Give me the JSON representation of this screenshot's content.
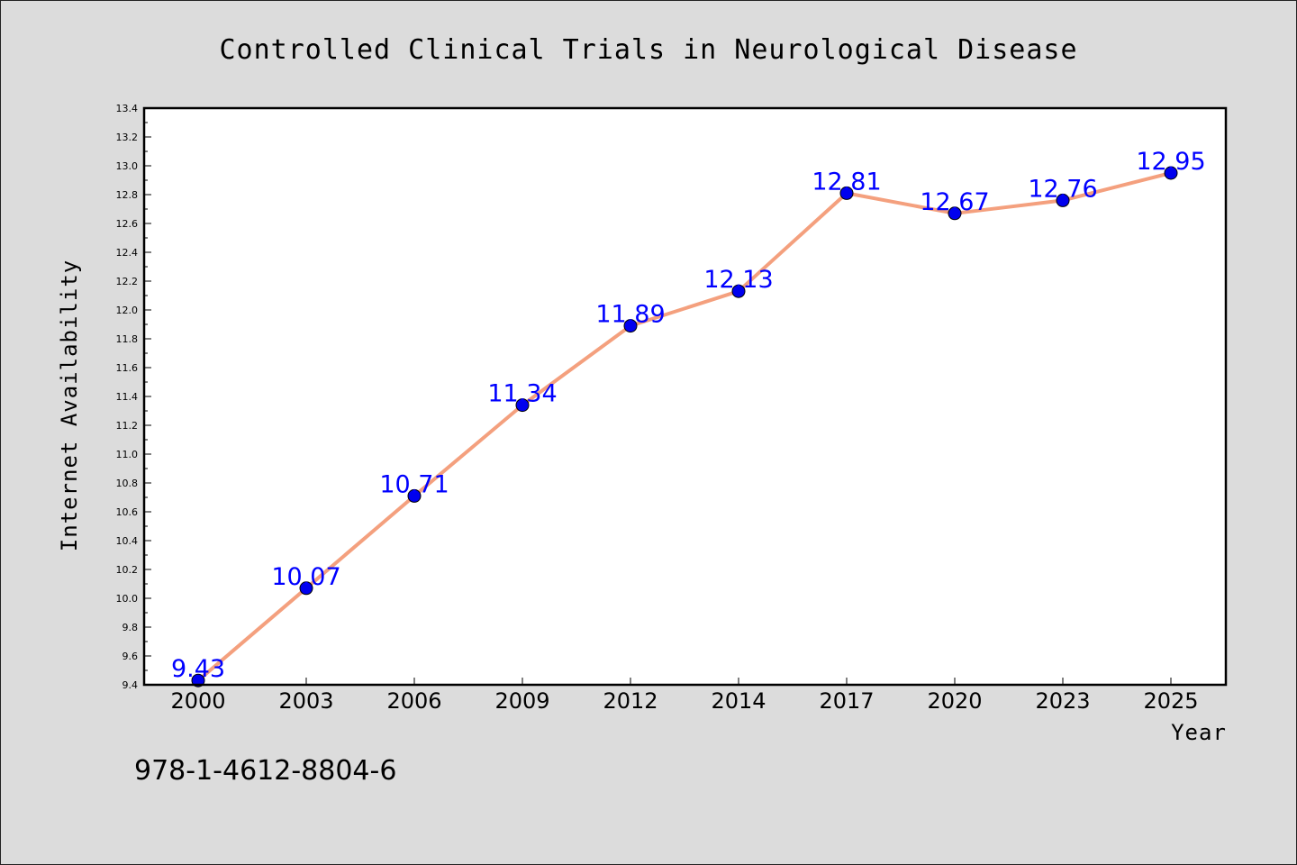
{
  "chart_data": {
    "type": "line",
    "title": "Controlled Clinical Trials in Neurological Disease",
    "xlabel": "Year",
    "ylabel": "Internet Availability",
    "categories": [
      "2000",
      "2003",
      "2006",
      "2009",
      "2012",
      "2014",
      "2017",
      "2020",
      "2023",
      "2025"
    ],
    "series": [
      {
        "values": [
          9.43,
          10.07,
          10.71,
          11.34,
          11.89,
          12.13,
          12.81,
          12.67,
          12.76,
          12.95
        ],
        "labels": [
          "9.43",
          "10.07",
          "10.71",
          "11.34",
          "11.89",
          "12.13",
          "12.81",
          "12.67",
          "12.76",
          "12.95"
        ]
      }
    ],
    "ylim": [
      9.4,
      13.4
    ],
    "yticks": [
      "9.4",
      "9.6",
      "9.8",
      "10.0",
      "10.2",
      "10.4",
      "10.6",
      "10.8",
      "11.0",
      "11.2",
      "11.4",
      "11.6",
      "11.8",
      "12.0",
      "12.2",
      "12.4",
      "12.6",
      "12.8",
      "13.0",
      "13.2",
      "13.4"
    ],
    "grid": false,
    "legend": "none",
    "colors": {
      "line": "#f4a07e",
      "marker": "#0000ee",
      "label": "#0000ff",
      "background": "#dcdcdc",
      "plot_background": "#ffffff"
    }
  },
  "footer": {
    "isbn": "978-1-4612-8804-6"
  }
}
